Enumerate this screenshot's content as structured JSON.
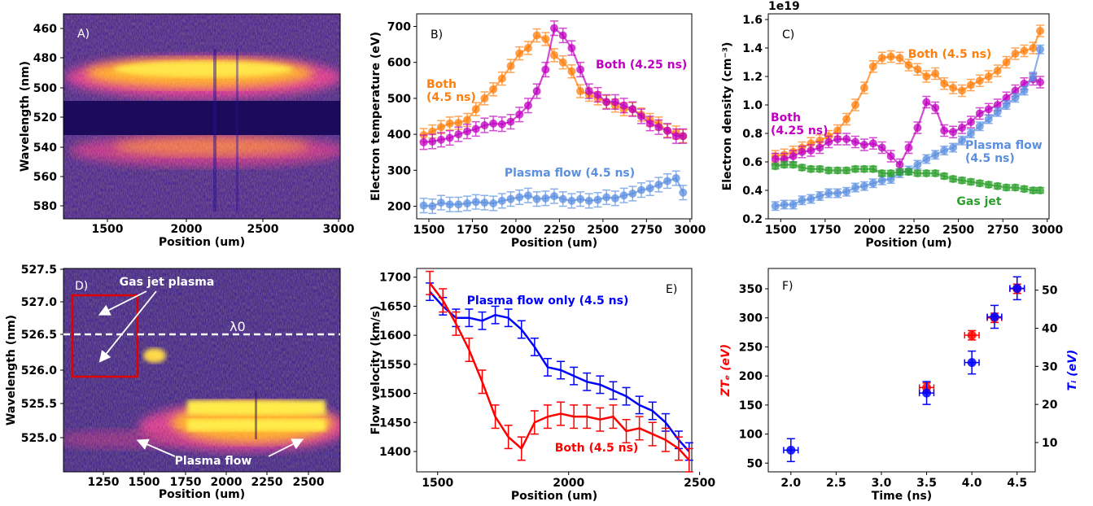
{
  "panels": {
    "a": {
      "label": "A)",
      "xlabel": "Position (um)",
      "ylabel": "Wavelength (nm)",
      "xticks": [
        "1500",
        "2000",
        "2500",
        "3000"
      ],
      "yticks": [
        "460",
        "480",
        "500",
        "520",
        "540",
        "560",
        "580"
      ]
    },
    "d": {
      "label": "D)",
      "xlabel": "Position (um)",
      "ylabel": "Wavelength (nm)",
      "xticks": [
        "1250",
        "1500",
        "1750",
        "2000",
        "2250",
        "2500"
      ],
      "yticks": [
        "527.5",
        "527.0",
        "526.5",
        "526.0",
        "525.5",
        "525.0"
      ],
      "annotations": {
        "gas_jet": "Gas jet plasma",
        "plasma_flow": "Plasma flow",
        "lambda": "λ0"
      }
    }
  },
  "colors": {
    "orange": "#ff7f0e",
    "magenta": "#c000c0",
    "lightblue": "#5b8fe0",
    "green": "#2ca02c",
    "red": "#ff0000",
    "blue": "#0000ff"
  },
  "chart_data": [
    {
      "id": "b",
      "type": "line",
      "panel_label": "B)",
      "xlabel": "Position (um)",
      "ylabel": "Electron temperature (eV)",
      "xlim": [
        1430,
        3010
      ],
      "ylim": [
        165,
        735
      ],
      "xticks": [
        1500,
        1750,
        2000,
        2250,
        2500,
        2750,
        3000
      ],
      "yticks": [
        200,
        300,
        400,
        500,
        600,
        700
      ],
      "x": [
        1470,
        1520,
        1570,
        1620,
        1670,
        1720,
        1770,
        1820,
        1870,
        1920,
        1970,
        2020,
        2070,
        2120,
        2170,
        2220,
        2270,
        2320,
        2370,
        2420,
        2470,
        2520,
        2570,
        2620,
        2670,
        2720,
        2770,
        2820,
        2870,
        2920,
        2960
      ],
      "series": [
        {
          "name": "Both (4.5 ns)",
          "color": "orange",
          "err": 18,
          "values": [
            398,
            408,
            420,
            430,
            432,
            440,
            470,
            500,
            525,
            555,
            590,
            625,
            640,
            675,
            665,
            620,
            600,
            575,
            520,
            510,
            500,
            490,
            480,
            470,
            470,
            455,
            440,
            430,
            410,
            405,
            395
          ]
        },
        {
          "name": "Both (4.25 ns)",
          "color": "magenta",
          "err": 20,
          "values": [
            378,
            380,
            385,
            390,
            400,
            408,
            415,
            425,
            430,
            428,
            435,
            455,
            480,
            520,
            580,
            695,
            675,
            640,
            580,
            520,
            510,
            490,
            490,
            480,
            470,
            450,
            430,
            420,
            410,
            395,
            395
          ]
        },
        {
          "name": "Plasma flow (4.5 ns)",
          "color": "lightblue",
          "err": 20,
          "values": [
            202,
            200,
            210,
            205,
            205,
            208,
            212,
            210,
            208,
            215,
            220,
            225,
            230,
            220,
            222,
            228,
            220,
            215,
            220,
            215,
            218,
            225,
            222,
            230,
            235,
            245,
            250,
            260,
            270,
            278,
            238
          ]
        }
      ],
      "labels": [
        {
          "text": "Both\n(4.5 ns)",
          "series": 0
        },
        {
          "text": "Both (4.25 ns)",
          "series": 1
        },
        {
          "text": "Plasma flow (4.5 ns)",
          "series": 2
        }
      ]
    },
    {
      "id": "c",
      "type": "line",
      "panel_label": "C)",
      "xlabel": "Position (um)",
      "ylabel": "Electron density (cm⁻³)",
      "offset_text": "1e19",
      "xlim": [
        1430,
        3010
      ],
      "ylim": [
        0.2,
        1.64
      ],
      "xticks": [
        1500,
        1750,
        2000,
        2250,
        2500,
        2750,
        3000
      ],
      "yticks": [
        0.2,
        0.4,
        0.6,
        0.8,
        1.0,
        1.2,
        1.4,
        1.6
      ],
      "x": [
        1470,
        1520,
        1570,
        1620,
        1670,
        1720,
        1770,
        1820,
        1870,
        1920,
        1970,
        2020,
        2070,
        2120,
        2170,
        2220,
        2270,
        2320,
        2370,
        2420,
        2470,
        2520,
        2570,
        2620,
        2670,
        2720,
        2770,
        2820,
        2870,
        2920,
        2960
      ],
      "series": [
        {
          "name": "Both (4.5 ns)",
          "color": "orange",
          "err": 0.04,
          "values": [
            0.64,
            0.65,
            0.67,
            0.7,
            0.73,
            0.75,
            0.78,
            0.82,
            0.9,
            1.0,
            1.12,
            1.27,
            1.33,
            1.34,
            1.33,
            1.28,
            1.25,
            1.2,
            1.22,
            1.15,
            1.12,
            1.1,
            1.14,
            1.17,
            1.2,
            1.24,
            1.3,
            1.36,
            1.38,
            1.4,
            1.52
          ]
        },
        {
          "name": "Both (4.25 ns)",
          "color": "magenta",
          "err": 0.04,
          "values": [
            0.62,
            0.62,
            0.64,
            0.67,
            0.68,
            0.7,
            0.74,
            0.76,
            0.76,
            0.74,
            0.72,
            0.73,
            0.7,
            0.64,
            0.58,
            0.7,
            0.84,
            1.02,
            0.98,
            0.82,
            0.81,
            0.84,
            0.88,
            0.94,
            0.97,
            1.0,
            1.05,
            1.1,
            1.15,
            1.18,
            1.16
          ]
        },
        {
          "name": "Plasma flow\n(4.5 ns)",
          "color": "lightblue",
          "err": 0.03,
          "values": [
            0.29,
            0.3,
            0.3,
            0.33,
            0.34,
            0.36,
            0.38,
            0.38,
            0.39,
            0.42,
            0.43,
            0.45,
            0.47,
            0.48,
            0.52,
            0.54,
            0.58,
            0.62,
            0.65,
            0.68,
            0.7,
            0.75,
            0.8,
            0.85,
            0.9,
            0.95,
            1.0,
            1.05,
            1.1,
            1.2,
            1.39
          ]
        },
        {
          "name": "Gas jet",
          "color": "green",
          "err": 0.02,
          "values": [
            0.57,
            0.58,
            0.58,
            0.56,
            0.55,
            0.55,
            0.54,
            0.54,
            0.54,
            0.55,
            0.55,
            0.55,
            0.52,
            0.52,
            0.53,
            0.53,
            0.52,
            0.52,
            0.52,
            0.5,
            0.48,
            0.47,
            0.46,
            0.45,
            0.44,
            0.43,
            0.42,
            0.42,
            0.41,
            0.4,
            0.4
          ]
        }
      ],
      "labels": [
        {
          "text": "Both (4.5 ns)",
          "series": 0
        },
        {
          "text": "Both\n(4.25 ns)",
          "series": 1
        },
        {
          "text": "Plasma flow\n(4.5 ns)",
          "series": 2
        },
        {
          "text": "Gas jet",
          "series": 3
        }
      ]
    },
    {
      "id": "e",
      "type": "line",
      "panel_label": "E)",
      "xlabel": "Position (um)",
      "ylabel": "Flow velocity (km/s)",
      "xlim": [
        1420,
        2470
      ],
      "ylim": [
        1365,
        1715
      ],
      "xticks": [
        1500,
        2000,
        2500
      ],
      "yticks": [
        1400,
        1450,
        1500,
        1550,
        1600,
        1650,
        1700
      ],
      "x": [
        1470,
        1520,
        1570,
        1620,
        1670,
        1720,
        1770,
        1820,
        1870,
        1920,
        1970,
        2020,
        2070,
        2120,
        2170,
        2220,
        2270,
        2320,
        2370,
        2420,
        2460
      ],
      "series": [
        {
          "name": "Plasma flow only (4.5 ns)",
          "color": "blue",
          "err": 15,
          "values": [
            1675,
            1650,
            1630,
            1630,
            1625,
            1635,
            1630,
            1610,
            1580,
            1545,
            1540,
            1530,
            1520,
            1515,
            1505,
            1495,
            1480,
            1470,
            1450,
            1420,
            1400
          ]
        },
        {
          "name": "Both (4.5 ns)",
          "color": "red",
          "err": 20,
          "values": [
            1690,
            1660,
            1620,
            1575,
            1520,
            1460,
            1425,
            1405,
            1450,
            1460,
            1465,
            1460,
            1460,
            1455,
            1460,
            1435,
            1440,
            1430,
            1420,
            1405,
            1385
          ]
        }
      ],
      "labels": [
        {
          "text": "Plasma flow only (4.5 ns)",
          "series": 0
        },
        {
          "text": "Both (4.5 ns)",
          "series": 1
        }
      ]
    },
    {
      "id": "f",
      "type": "scatter",
      "panel_label": "F)",
      "xlabel": "Time (ns)",
      "ylabel_left": "ZTₑ (eV)",
      "ylabel_right": "Tᵢ (eV)",
      "xlim": [
        1.75,
        4.7
      ],
      "ylim_left": [
        35,
        385
      ],
      "ylim_right": [
        2.3,
        55.7
      ],
      "xticks": [
        2.0,
        2.5,
        3.0,
        3.5,
        4.0,
        4.5
      ],
      "yticks_left": [
        50,
        100,
        150,
        200,
        250,
        300,
        350
      ],
      "yticks_right": [
        10,
        20,
        30,
        40,
        50
      ],
      "series": [
        {
          "name": "ZTe",
          "color": "red",
          "axis": "left",
          "x": [
            3.5,
            4.0,
            4.25,
            4.5
          ],
          "values": [
            180,
            270,
            300,
            350
          ],
          "xerr": 0.08,
          "yerr": 8
        },
        {
          "name": "Ti",
          "color": "blue",
          "axis": "right",
          "x": [
            2.0,
            3.5,
            4.0,
            4.25,
            4.5
          ],
          "values": [
            8,
            23,
            31,
            43,
            50.5
          ],
          "xerr": 0.08,
          "yerr": 3
        }
      ]
    }
  ]
}
